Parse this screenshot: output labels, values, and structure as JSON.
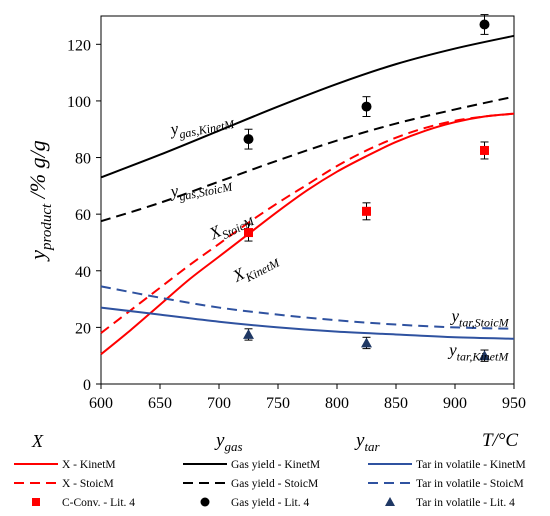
{
  "chart_data": {
    "type": "line",
    "title": "",
    "xlabel": "T/°C",
    "ylabel": "y_product /% g/g",
    "xlim": [
      600,
      950
    ],
    "ylim": [
      0,
      130
    ],
    "xticks": [
      600,
      650,
      700,
      750,
      800,
      850,
      900,
      950
    ],
    "yticks": [
      0,
      20,
      40,
      60,
      80,
      100,
      120
    ],
    "grid": false,
    "legend_placement": "bottom",
    "legend_headers": [
      "X",
      "y_gas",
      "y_tar"
    ],
    "series": [
      {
        "name": "X - KinetM",
        "kind": "line",
        "dash": "solid",
        "color": "#ff0000",
        "x": [
          600,
          625,
          650,
          675,
          700,
          725,
          750,
          775,
          800,
          825,
          850,
          875,
          900,
          925,
          950
        ],
        "y": [
          10.5,
          19,
          28,
          37,
          45,
          53,
          61,
          68.5,
          75,
          80.5,
          85.5,
          89.5,
          92.5,
          94.5,
          95.5
        ]
      },
      {
        "name": "X - StoicM",
        "kind": "line",
        "dash": "dashed",
        "color": "#ff0000",
        "x": [
          600,
          625,
          650,
          675,
          700,
          725,
          750,
          775,
          800,
          825,
          850,
          875,
          900,
          925,
          950
        ],
        "y": [
          18,
          26,
          34,
          42,
          49.5,
          57,
          64,
          70.5,
          77,
          82.5,
          87,
          90.5,
          93,
          94.5,
          95.5
        ]
      },
      {
        "name": "C-Conv. - Lit. 4",
        "kind": "marker",
        "marker": "square",
        "color": "#ff0000",
        "x": [
          725,
          825,
          925
        ],
        "y": [
          53.5,
          61,
          82.5
        ],
        "err": [
          3,
          3,
          3
        ]
      },
      {
        "name": "Gas yield - KinetM",
        "kind": "line",
        "dash": "solid",
        "color": "#000000",
        "x": [
          600,
          650,
          700,
          750,
          800,
          850,
          900,
          950
        ],
        "y": [
          73,
          81,
          89.5,
          98,
          106,
          113,
          118.5,
          123
        ]
      },
      {
        "name": "Gas yield - StoicM",
        "kind": "line",
        "dash": "dashed",
        "color": "#000000",
        "x": [
          600,
          650,
          700,
          750,
          800,
          850,
          900,
          950
        ],
        "y": [
          57.5,
          64,
          71.5,
          79,
          86,
          92,
          97,
          101.5
        ]
      },
      {
        "name": "Gas yield - Lit. 4",
        "kind": "marker",
        "marker": "circle",
        "color": "#000000",
        "x": [
          725,
          825,
          925
        ],
        "y": [
          86.5,
          98,
          127
        ],
        "err": [
          3.5,
          3.5,
          3.5
        ]
      },
      {
        "name": "Tar in volatile - KinetM",
        "kind": "line",
        "dash": "solid",
        "color": "#2f52a0",
        "x": [
          600,
          650,
          700,
          750,
          800,
          850,
          900,
          950
        ],
        "y": [
          27,
          24.5,
          22,
          20,
          18.5,
          17.5,
          16.5,
          16
        ]
      },
      {
        "name": "Tar in volatile - StoicM",
        "kind": "line",
        "dash": "dashed",
        "color": "#2f52a0",
        "x": [
          600,
          650,
          700,
          750,
          800,
          850,
          900,
          950
        ],
        "y": [
          34.5,
          30.5,
          27,
          24.5,
          22.5,
          21,
          20,
          19.5
        ]
      },
      {
        "name": "Tar in volatile - Lit. 4",
        "kind": "marker",
        "marker": "triangle",
        "color": "#1f3864",
        "x": [
          725,
          825,
          925
        ],
        "y": [
          17.5,
          14.5,
          10
        ],
        "err": [
          2,
          2,
          2
        ]
      }
    ],
    "annotations": [
      {
        "text": "y_gas,KinetM",
        "x": 660,
        "y": 88,
        "rotate": -11
      },
      {
        "text": "y_gas,StoicM",
        "x": 660,
        "y": 66,
        "rotate": -11
      },
      {
        "text": "X_StoicM",
        "x": 695,
        "y": 51,
        "rotate": -27
      },
      {
        "text": "X_KinetM",
        "x": 715,
        "y": 36,
        "rotate": -27
      },
      {
        "text": "y_tar,StoicM",
        "x": 897,
        "y": 22,
        "rotate": 0
      },
      {
        "text": "y_tar,KinetM",
        "x": 895,
        "y": 10,
        "rotate": 0
      }
    ]
  }
}
